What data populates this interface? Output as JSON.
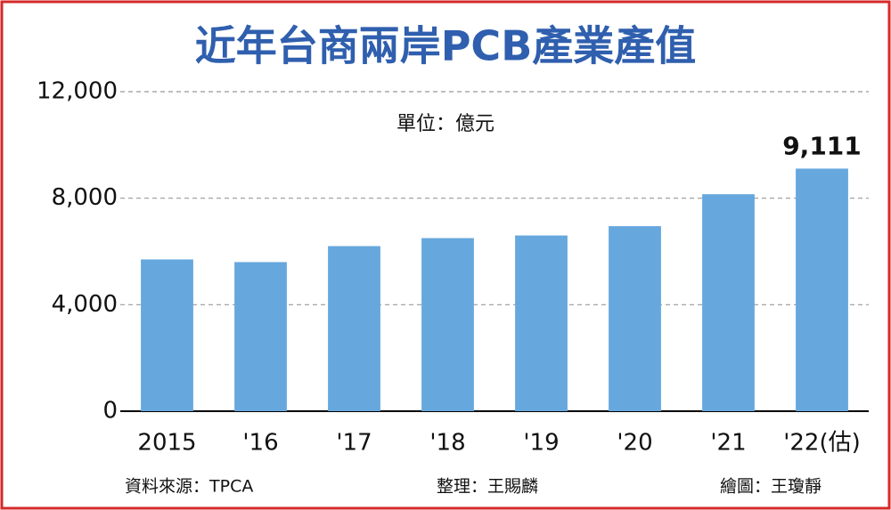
{
  "chart_data": {
    "type": "bar",
    "title": "近年台商兩岸PCB產業產值",
    "unit": "單位：億元",
    "categories": [
      "2015",
      "'16",
      "'17",
      "'18",
      "'19",
      "'20",
      "'21",
      "'22(估)"
    ],
    "values": [
      5700,
      5600,
      6200,
      6500,
      6600,
      6950,
      8150,
      9111
    ],
    "value_labels": [
      null,
      null,
      null,
      null,
      null,
      null,
      null,
      "9,111"
    ],
    "color": "#66a8dd",
    "ylim": [
      0,
      12000
    ],
    "yticks": [
      0,
      {
        "value": 4000,
        "label": "4,000"
      },
      {
        "value": 8000,
        "label": "8,000"
      },
      {
        "value": 12000,
        "label": "12,000"
      }
    ],
    "grid": true,
    "source": "資料來源：TPCA",
    "editor": "整理：王賜麟",
    "artist": "繪圖：王瓊靜"
  }
}
